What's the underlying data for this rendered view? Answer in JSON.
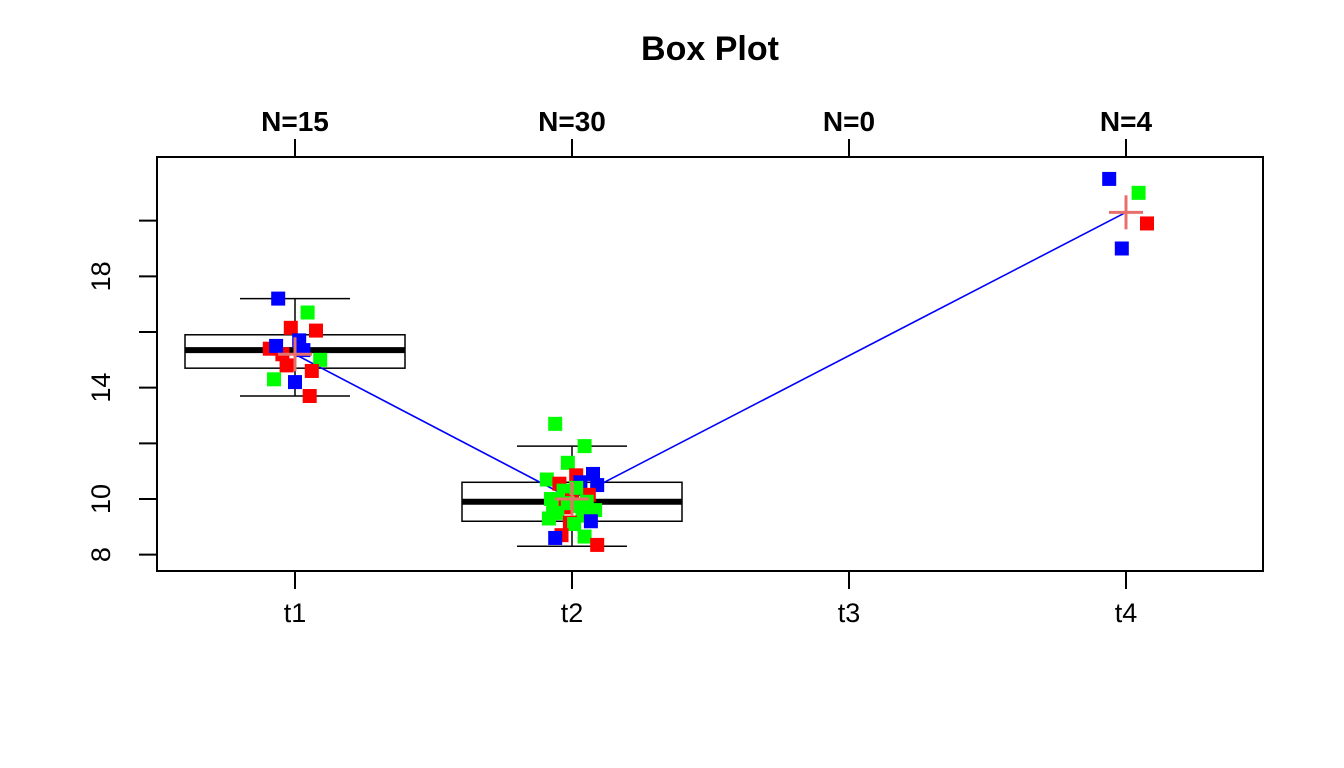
{
  "chart_data": {
    "type": "box",
    "title": "Box Plot",
    "xlabel": "",
    "ylabel": "",
    "categories": [
      "t1",
      "t2",
      "t3",
      "t4"
    ],
    "counts": [
      "N=15",
      "N=30",
      "N=0",
      "N=4"
    ],
    "ylim": [
      7.7,
      22.0
    ],
    "y_ticks": [
      8,
      10,
      12,
      14,
      16,
      18,
      20
    ],
    "y_tick_labels": [
      "8",
      "10",
      "",
      "14",
      "",
      "18",
      ""
    ],
    "boxes": [
      {
        "category": "t1",
        "whisker_low": 13.7,
        "q1": 14.7,
        "median": 15.35,
        "q3": 15.9,
        "whisker_high": 17.2
      },
      {
        "category": "t2",
        "whisker_low": 8.3,
        "q1": 9.2,
        "median": 9.9,
        "q3": 10.6,
        "whisker_high": 11.9
      },
      {
        "category": "t3"
      },
      {
        "category": "t4"
      }
    ],
    "means": [
      {
        "category": "t1",
        "value": 15.2
      },
      {
        "category": "t2",
        "value": 10.0
      },
      {
        "category": "t4",
        "value": 20.3
      }
    ],
    "points": {
      "t1": [
        {
          "y": 17.2,
          "color": "blue"
        },
        {
          "y": 16.7,
          "color": "green"
        },
        {
          "y": 16.15,
          "color": "red"
        },
        {
          "y": 16.05,
          "color": "red"
        },
        {
          "y": 15.7,
          "color": "blue"
        },
        {
          "y": 15.4,
          "color": "red"
        },
        {
          "y": 15.35,
          "color": "blue"
        },
        {
          "y": 15.2,
          "color": "red"
        },
        {
          "y": 15.0,
          "color": "green"
        },
        {
          "y": 14.8,
          "color": "red"
        },
        {
          "y": 14.6,
          "color": "red"
        },
        {
          "y": 14.3,
          "color": "green"
        },
        {
          "y": 14.2,
          "color": "blue"
        },
        {
          "y": 13.7,
          "color": "red"
        },
        {
          "y": 15.5,
          "color": "blue"
        }
      ],
      "t2": [
        {
          "y": 12.7,
          "color": "green"
        },
        {
          "y": 11.9,
          "color": "green"
        },
        {
          "y": 11.3,
          "color": "green"
        },
        {
          "y": 10.9,
          "color": "blue"
        },
        {
          "y": 10.85,
          "color": "red"
        },
        {
          "y": 10.7,
          "color": "green"
        },
        {
          "y": 10.6,
          "color": "blue"
        },
        {
          "y": 10.55,
          "color": "red"
        },
        {
          "y": 10.5,
          "color": "blue"
        },
        {
          "y": 10.3,
          "color": "green"
        },
        {
          "y": 10.15,
          "color": "red"
        },
        {
          "y": 10.0,
          "color": "green"
        },
        {
          "y": 9.95,
          "color": "red"
        },
        {
          "y": 9.9,
          "color": "green"
        },
        {
          "y": 9.8,
          "color": "green"
        },
        {
          "y": 9.75,
          "color": "green"
        },
        {
          "y": 9.7,
          "color": "red"
        },
        {
          "y": 9.6,
          "color": "green"
        },
        {
          "y": 9.5,
          "color": "green"
        },
        {
          "y": 9.4,
          "color": "green"
        },
        {
          "y": 9.3,
          "color": "green"
        },
        {
          "y": 9.2,
          "color": "blue"
        },
        {
          "y": 9.15,
          "color": "red"
        },
        {
          "y": 9.1,
          "color": "green"
        },
        {
          "y": 8.7,
          "color": "red"
        },
        {
          "y": 8.65,
          "color": "green"
        },
        {
          "y": 8.6,
          "color": "blue"
        },
        {
          "y": 8.35,
          "color": "red"
        },
        {
          "y": 10.4,
          "color": "green"
        },
        {
          "y": 9.85,
          "color": "green"
        }
      ],
      "t3": [],
      "t4": [
        {
          "y": 21.5,
          "color": "blue"
        },
        {
          "y": 21.0,
          "color": "green"
        },
        {
          "y": 19.0,
          "color": "blue"
        },
        {
          "y": 19.9,
          "color": "red"
        }
      ]
    },
    "mean_line_color": "#0000ff",
    "mean_marker_color": "#e8706c",
    "colors": {
      "red": "#ff0000",
      "green": "#00ff00",
      "blue": "#0000ff"
    }
  }
}
